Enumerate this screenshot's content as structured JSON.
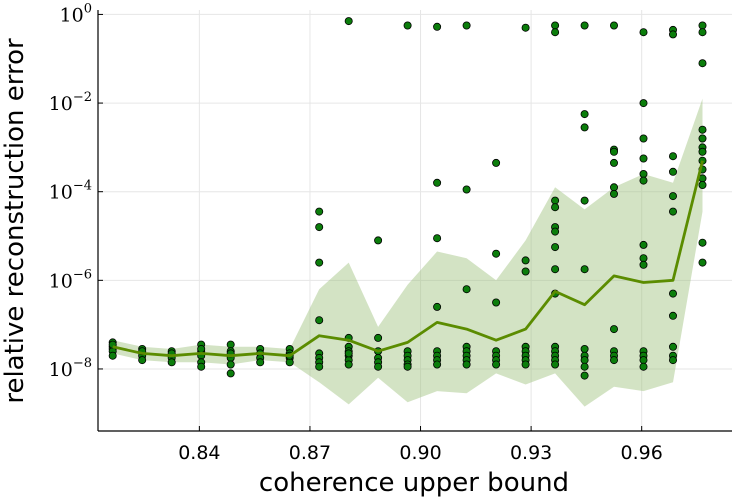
{
  "chart_data": {
    "type": "scatter",
    "title": "",
    "xlabel": "coherence upper bound",
    "ylabel": "relative reconstruction error",
    "x_scale": "linear",
    "y_scale": "log10",
    "xlim": [
      0.8125,
      0.9845
    ],
    "ylim_log10": [
      -9.4,
      0.1
    ],
    "x_ticks": [
      0.84,
      0.87,
      0.9,
      0.93,
      0.96
    ],
    "x_tick_labels": [
      "0.84",
      "0.87",
      "0.90",
      "0.93",
      "0.96"
    ],
    "y_ticks_log10": [
      -8,
      -6,
      -4,
      -2,
      0
    ],
    "y_tick_labels": [
      {
        "base": "10",
        "exp": "−8"
      },
      {
        "base": "10",
        "exp": "−6"
      },
      {
        "base": "10",
        "exp": "−4"
      },
      {
        "base": "10",
        "exp": "−2"
      },
      {
        "base": "10",
        "exp": "0"
      }
    ],
    "grid": true,
    "legend": "none",
    "colors": {
      "points_fill": "#0b7d0b",
      "points_stroke": "#000000",
      "line": "#5b8c00",
      "band": "#9dc27c"
    },
    "x": [
      0.8165,
      0.8245,
      0.8325,
      0.8405,
      0.8485,
      0.8565,
      0.8645,
      0.8725,
      0.8805,
      0.8885,
      0.8965,
      0.9045,
      0.9125,
      0.9205,
      0.9285,
      0.9365,
      0.9445,
      0.9525,
      0.9605,
      0.9685,
      0.9765
    ],
    "series": [
      {
        "kind": "median-line",
        "values_log10": [
          -7.5,
          -7.65,
          -7.7,
          -7.65,
          -7.7,
          -7.65,
          -7.7,
          -7.25,
          -7.35,
          -7.6,
          -7.4,
          -6.95,
          -7.1,
          -7.35,
          -7.1,
          -6.25,
          -6.55,
          -5.9,
          -6.05,
          -6.0,
          -3.3
        ]
      },
      {
        "kind": "band-upper",
        "values_log10": [
          -7.35,
          -7.5,
          -7.55,
          -7.45,
          -7.5,
          -7.5,
          -7.55,
          -6.2,
          -5.6,
          -7.05,
          -6.1,
          -5.35,
          -5.5,
          -6.0,
          -5.1,
          -3.9,
          -4.4,
          -3.9,
          -3.6,
          -3.8,
          -1.9
        ]
      },
      {
        "kind": "band-lower",
        "values_log10": [
          -7.65,
          -7.8,
          -7.85,
          -7.85,
          -7.9,
          -7.8,
          -7.85,
          -8.3,
          -8.8,
          -8.2,
          -8.75,
          -8.5,
          -8.55,
          -8.1,
          -8.35,
          -8.1,
          -8.85,
          -8.4,
          -8.5,
          -8.3,
          -4.45
        ]
      },
      {
        "kind": "points",
        "points": [
          [
            0.8165,
            -7.4
          ],
          [
            0.8165,
            -7.5
          ],
          [
            0.8165,
            -7.55
          ],
          [
            0.8165,
            -7.6
          ],
          [
            0.8165,
            -7.45
          ],
          [
            0.8165,
            -7.7
          ],
          [
            0.8245,
            -7.55
          ],
          [
            0.8245,
            -7.65
          ],
          [
            0.8245,
            -7.7
          ],
          [
            0.8245,
            -7.8
          ],
          [
            0.8245,
            -7.6
          ],
          [
            0.8325,
            -7.6
          ],
          [
            0.8325,
            -7.7
          ],
          [
            0.8325,
            -7.75
          ],
          [
            0.8325,
            -7.85
          ],
          [
            0.8325,
            -7.65
          ],
          [
            0.8405,
            -7.45
          ],
          [
            0.8405,
            -7.6
          ],
          [
            0.8405,
            -7.7
          ],
          [
            0.8405,
            -7.85
          ],
          [
            0.8405,
            -7.95
          ],
          [
            0.8405,
            -7.55
          ],
          [
            0.8485,
            -7.45
          ],
          [
            0.8485,
            -7.6
          ],
          [
            0.8485,
            -7.75
          ],
          [
            0.8485,
            -7.9
          ],
          [
            0.8485,
            -8.1
          ],
          [
            0.8485,
            -7.65
          ],
          [
            0.8565,
            -7.55
          ],
          [
            0.8565,
            -7.65
          ],
          [
            0.8565,
            -7.75
          ],
          [
            0.8565,
            -7.85
          ],
          [
            0.8645,
            -7.55
          ],
          [
            0.8645,
            -7.65
          ],
          [
            0.8645,
            -7.75
          ],
          [
            0.8645,
            -7.85
          ],
          [
            0.8645,
            -7.7
          ],
          [
            0.8725,
            -4.45
          ],
          [
            0.8725,
            -4.8
          ],
          [
            0.8725,
            -5.6
          ],
          [
            0.8725,
            -6.9
          ],
          [
            0.8725,
            -7.65
          ],
          [
            0.8725,
            -7.75
          ],
          [
            0.8725,
            -7.85
          ],
          [
            0.8725,
            -7.95
          ],
          [
            0.8805,
            -0.15
          ],
          [
            0.8805,
            -7.3
          ],
          [
            0.8805,
            -7.5
          ],
          [
            0.8805,
            -7.6
          ],
          [
            0.8805,
            -7.7
          ],
          [
            0.8805,
            -7.8
          ],
          [
            0.8805,
            -7.9
          ],
          [
            0.8805,
            -7.65
          ],
          [
            0.8885,
            -5.1
          ],
          [
            0.8885,
            -7.3
          ],
          [
            0.8885,
            -7.6
          ],
          [
            0.8885,
            -7.75
          ],
          [
            0.8885,
            -7.85
          ],
          [
            0.8885,
            -7.95
          ],
          [
            0.8965,
            -0.25
          ],
          [
            0.8965,
            -7.6
          ],
          [
            0.8965,
            -7.7
          ],
          [
            0.8965,
            -7.8
          ],
          [
            0.8965,
            -7.9
          ],
          [
            0.8965,
            -7.95
          ],
          [
            0.9045,
            -0.28
          ],
          [
            0.9045,
            -3.8
          ],
          [
            0.9045,
            -5.05
          ],
          [
            0.9045,
            -6.6
          ],
          [
            0.9045,
            -7.6
          ],
          [
            0.9045,
            -7.7
          ],
          [
            0.9045,
            -7.8
          ],
          [
            0.9045,
            -7.9
          ],
          [
            0.9125,
            -0.25
          ],
          [
            0.9125,
            -3.95
          ],
          [
            0.9125,
            -6.2
          ],
          [
            0.9125,
            -7.5
          ],
          [
            0.9125,
            -7.6
          ],
          [
            0.9125,
            -7.7
          ],
          [
            0.9125,
            -7.8
          ],
          [
            0.9125,
            -7.9
          ],
          [
            0.9205,
            -3.35
          ],
          [
            0.9205,
            -5.4
          ],
          [
            0.9205,
            -6.5
          ],
          [
            0.9205,
            -7.6
          ],
          [
            0.9205,
            -7.7
          ],
          [
            0.9205,
            -7.8
          ],
          [
            0.9205,
            -7.9
          ],
          [
            0.9285,
            -0.3
          ],
          [
            0.9285,
            -5.55
          ],
          [
            0.9285,
            -5.8
          ],
          [
            0.9285,
            -7.5
          ],
          [
            0.9285,
            -7.6
          ],
          [
            0.9285,
            -7.7
          ],
          [
            0.9285,
            -7.8
          ],
          [
            0.9285,
            -7.9
          ],
          [
            0.9365,
            -0.25
          ],
          [
            0.9365,
            -0.4
          ],
          [
            0.9365,
            -4.2
          ],
          [
            0.9365,
            -4.35
          ],
          [
            0.9365,
            -4.8
          ],
          [
            0.9365,
            -4.9
          ],
          [
            0.9365,
            -5.25
          ],
          [
            0.9365,
            -5.75
          ],
          [
            0.9365,
            -6.3
          ],
          [
            0.9365,
            -7.5
          ],
          [
            0.9365,
            -7.6
          ],
          [
            0.9365,
            -7.7
          ],
          [
            0.9365,
            -7.8
          ],
          [
            0.9365,
            -7.9
          ],
          [
            0.9445,
            -0.25
          ],
          [
            0.9445,
            -2.25
          ],
          [
            0.9445,
            -2.55
          ],
          [
            0.9445,
            -4.2
          ],
          [
            0.9445,
            -5.75
          ],
          [
            0.9445,
            -7.55
          ],
          [
            0.9445,
            -7.7
          ],
          [
            0.9445,
            -7.8
          ],
          [
            0.9445,
            -7.95
          ],
          [
            0.9445,
            -8.15
          ],
          [
            0.9525,
            -0.25
          ],
          [
            0.9525,
            -3.05
          ],
          [
            0.9525,
            -3.1
          ],
          [
            0.9525,
            -3.35
          ],
          [
            0.9525,
            -3.9
          ],
          [
            0.9525,
            -4.05
          ],
          [
            0.9525,
            -7.1
          ],
          [
            0.9525,
            -7.6
          ],
          [
            0.9525,
            -7.7
          ],
          [
            0.9525,
            -7.8
          ],
          [
            0.9605,
            -0.4
          ],
          [
            0.9605,
            -2.0
          ],
          [
            0.9605,
            -2.8
          ],
          [
            0.9605,
            -3.25
          ],
          [
            0.9605,
            -3.6
          ],
          [
            0.9605,
            -3.75
          ],
          [
            0.9605,
            -5.2
          ],
          [
            0.9605,
            -5.5
          ],
          [
            0.9605,
            -5.65
          ],
          [
            0.9605,
            -7.6
          ],
          [
            0.9605,
            -7.7
          ],
          [
            0.9605,
            -7.8
          ],
          [
            0.9605,
            -7.95
          ],
          [
            0.9685,
            -0.35
          ],
          [
            0.9685,
            -0.45
          ],
          [
            0.9685,
            -3.2
          ],
          [
            0.9685,
            -3.55
          ],
          [
            0.9685,
            -4.1
          ],
          [
            0.9685,
            -4.45
          ],
          [
            0.9685,
            -6.3
          ],
          [
            0.9685,
            -6.8
          ],
          [
            0.9685,
            -7.5
          ],
          [
            0.9685,
            -7.7
          ],
          [
            0.9685,
            -7.8
          ],
          [
            0.9765,
            -0.25
          ],
          [
            0.9765,
            -0.4
          ],
          [
            0.9765,
            -1.1
          ],
          [
            0.9765,
            -2.6
          ],
          [
            0.9765,
            -2.8
          ],
          [
            0.9765,
            -3.0
          ],
          [
            0.9765,
            -3.1
          ],
          [
            0.9765,
            -3.3
          ],
          [
            0.9765,
            -3.5
          ],
          [
            0.9765,
            -3.7
          ],
          [
            0.9765,
            -3.85
          ],
          [
            0.9765,
            -5.15
          ],
          [
            0.9765,
            -5.6
          ]
        ]
      }
    ]
  }
}
